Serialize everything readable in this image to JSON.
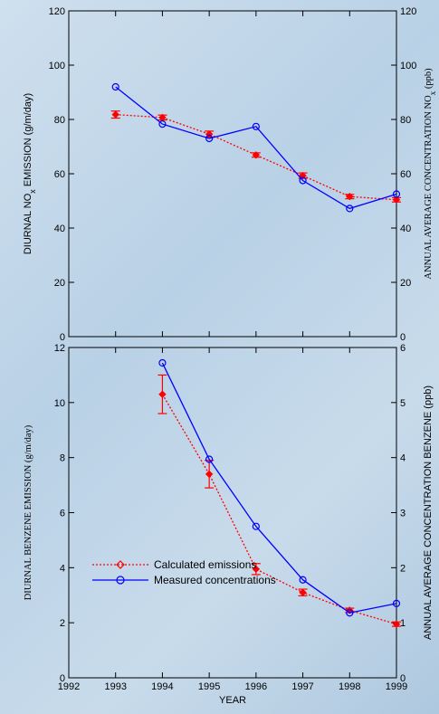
{
  "chart_data": [
    {
      "type": "line",
      "title": "",
      "xlabel": "",
      "ylabel": "DIURNAL NO_x EMISSION (g/m/day)",
      "ylabel_right": "ANNUAL AVERAGE CONCENTRATION NO_x (ppb)",
      "xlim": [
        1992,
        1999
      ],
      "ylim": [
        0,
        120
      ],
      "ylim_right": [
        0,
        120
      ],
      "y_ticks": [
        0,
        20,
        40,
        60,
        80,
        100,
        120
      ],
      "y_ticks_right": [
        0,
        20,
        40,
        60,
        80,
        100,
        120
      ],
      "grid": false,
      "series": [
        {
          "name": "Calculated emissions",
          "axis": "left",
          "color": "#ff0000",
          "style": "dotted",
          "marker": "diamond",
          "x": [
            1993,
            1994,
            1995,
            1996,
            1997,
            1998,
            1999
          ],
          "values": [
            81.8,
            80.7,
            74.6,
            66.9,
            59.3,
            51.6,
            50.4
          ],
          "error": [
            1.3,
            0.9,
            1.1,
            0.8,
            1.0,
            0.8,
            0.8
          ]
        },
        {
          "name": "Measured concentrations",
          "axis": "right",
          "color": "#0000ff",
          "style": "solid",
          "marker": "circle",
          "x": [
            1993,
            1994,
            1995,
            1996,
            1997,
            1998,
            1999
          ],
          "values": [
            92.0,
            78.3,
            73.0,
            77.4,
            57.5,
            47.2,
            52.5
          ]
        }
      ]
    },
    {
      "type": "line",
      "title": "",
      "xlabel": "YEAR",
      "ylabel": "DIURNAL BENZENE EMISSION (g/m/day)",
      "ylabel_right": "ANNUAL AVERAGE CONCENTRATION BENZENE (ppb)",
      "xlim": [
        1992,
        1999
      ],
      "ylim": [
        0,
        12
      ],
      "ylim_right": [
        0,
        6
      ],
      "x_ticks": [
        1992,
        1993,
        1994,
        1995,
        1996,
        1997,
        1998,
        1999
      ],
      "y_ticks": [
        0,
        2,
        4,
        6,
        8,
        10,
        12
      ],
      "y_ticks_right": [
        0,
        1,
        2,
        3,
        4,
        5,
        6
      ],
      "grid": false,
      "legend": "bottom-left",
      "series": [
        {
          "name": "Calculated emissions",
          "axis": "left",
          "color": "#ff0000",
          "style": "dotted",
          "marker": "diamond",
          "x": [
            1994,
            1995,
            1996,
            1997,
            1998,
            1999
          ],
          "values": [
            10.3,
            7.4,
            3.95,
            3.1,
            2.45,
            1.95
          ],
          "error": [
            0.7,
            0.5,
            0.2,
            0.12,
            0.08,
            0.08
          ]
        },
        {
          "name": "Measured concentrations",
          "axis": "right",
          "color": "#0000ff",
          "style": "solid",
          "marker": "circle",
          "x": [
            1994,
            1995,
            1996,
            1997,
            1998,
            1999
          ],
          "values": [
            5.72,
            3.97,
            2.75,
            1.78,
            1.18,
            1.35
          ]
        }
      ]
    }
  ]
}
